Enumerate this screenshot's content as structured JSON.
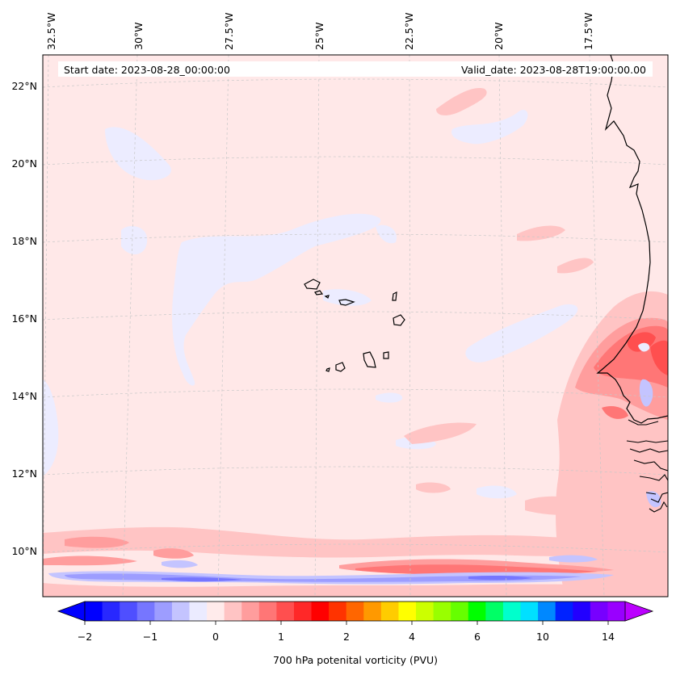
{
  "chart_data": {
    "type": "heatmap",
    "start_date": "Start date: 2023-08-28_00:00:00",
    "valid_date": "Valid_date: 2023-08-28T19:00:00.00",
    "lon_ticks": [
      "32.5°W",
      "30°W",
      "27.5°W",
      "25°W",
      "22.5°W",
      "20°W",
      "17.5°W"
    ],
    "lat_ticks": [
      "22°N",
      "20°N",
      "18°N",
      "16°N",
      "14°N",
      "12°N",
      "10°N"
    ],
    "lon_range": [
      -32.5,
      -15.3
    ],
    "lat_range": [
      8.9,
      22.8
    ],
    "colorbar": {
      "label": "700 hPa potenital vorticity (PVU)",
      "ticks": [
        "−2",
        "−1",
        "0",
        "1",
        "2",
        "4",
        "6",
        "10",
        "14"
      ],
      "colors": [
        "#0000ff",
        "#2828ff",
        "#4f4fff",
        "#7676ff",
        "#9d9dff",
        "#c4c4ff",
        "#ebebff",
        "#ffebeb",
        "#ffc4c4",
        "#ff9d9d",
        "#ff7676",
        "#ff4f4f",
        "#ff2828",
        "#ff0000",
        "#ff3300",
        "#ff6600",
        "#ff9900",
        "#ffcc00",
        "#ffff00",
        "#ccff00",
        "#99ff00",
        "#66ff00",
        "#00ff00",
        "#00ff66",
        "#00ffcc",
        "#00e0ff",
        "#0088ff",
        "#0022ff",
        "#2200ff",
        "#7700ff",
        "#9900ff"
      ],
      "extend_min_color": "#0000ff",
      "extend_max_color": "#bb00ff"
    },
    "background_value_color": "#ffe8e8",
    "negative_patch_color": "#ececff"
  }
}
